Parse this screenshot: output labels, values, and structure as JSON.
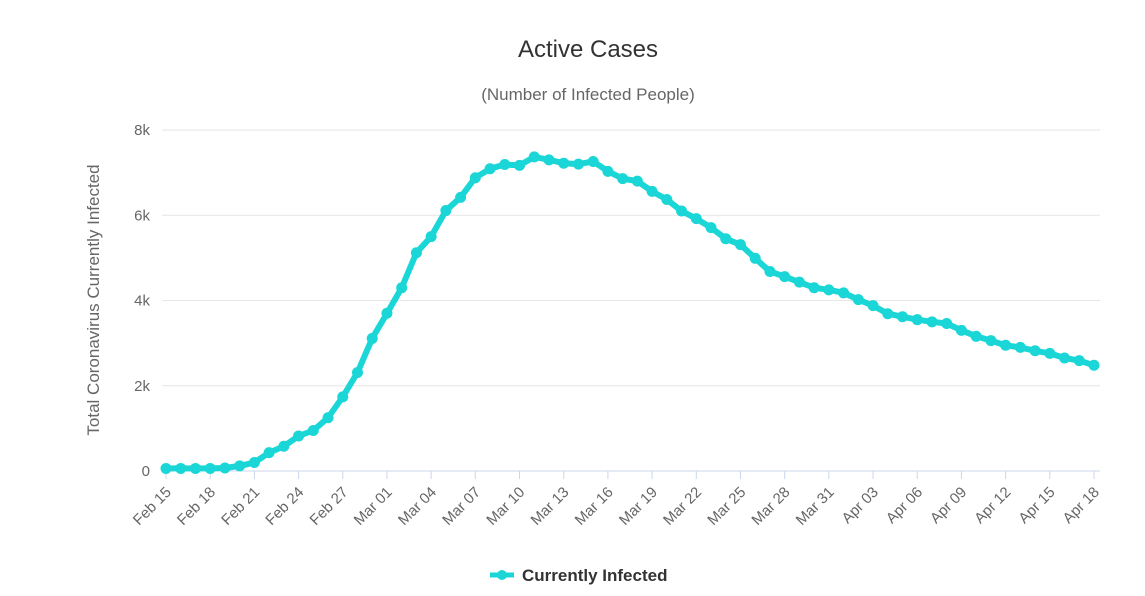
{
  "chart_data": {
    "type": "line",
    "title": "Active Cases",
    "subtitle": "(Number of Infected People)",
    "ylabel": "Total Coronavirus Currently Infected",
    "xlabel": "",
    "ylim": [
      0,
      8000
    ],
    "y_ticks": [
      {
        "value": 0,
        "label": "0"
      },
      {
        "value": 2000,
        "label": "2k"
      },
      {
        "value": 4000,
        "label": "4k"
      },
      {
        "value": 6000,
        "label": "6k"
      },
      {
        "value": 8000,
        "label": "8k"
      }
    ],
    "x_tick_labels": [
      "Feb 15",
      "Feb 18",
      "Feb 21",
      "Feb 24",
      "Feb 27",
      "Mar 01",
      "Mar 04",
      "Mar 07",
      "Mar 10",
      "Mar 13",
      "Mar 16",
      "Mar 19",
      "Mar 22",
      "Mar 25",
      "Mar 28",
      "Mar 31",
      "Apr 03",
      "Apr 06",
      "Apr 09",
      "Apr 12",
      "Apr 15",
      "Apr 18"
    ],
    "grid": true,
    "legend_position": "bottom-center",
    "series": [
      {
        "name": "Currently Infected",
        "color": "#1ad6d6",
        "values": [
          60,
          60,
          60,
          60,
          70,
          120,
          200,
          430,
          580,
          820,
          950,
          1250,
          1740,
          2310,
          3110,
          3700,
          4300,
          5120,
          5500,
          6110,
          6420,
          6880,
          7090,
          7190,
          7170,
          7370,
          7300,
          7220,
          7200,
          7260,
          7030,
          6860,
          6800,
          6560,
          6370,
          6100,
          5920,
          5710,
          5450,
          5310,
          4990,
          4680,
          4560,
          4430,
          4300,
          4250,
          4180,
          4020,
          3880,
          3690,
          3620,
          3550,
          3500,
          3460,
          3300,
          3160,
          3060,
          2950,
          2900,
          2820,
          2760,
          2650,
          2590,
          2480
        ]
      }
    ]
  }
}
